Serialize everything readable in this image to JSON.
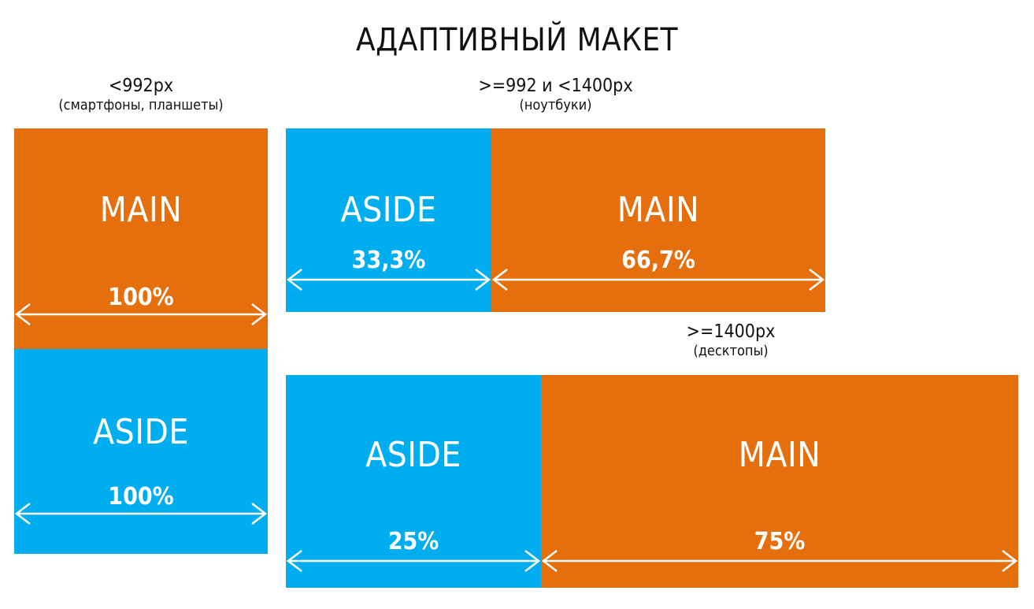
{
  "title": "АДАПТИВНЫЙ МАКЕТ",
  "colors": {
    "blue": "#00adef",
    "orange": "#e56f0c"
  },
  "breakpoints": [
    {
      "range": "<992px",
      "devices": "(смартфоны, планшеты)",
      "blocks": [
        {
          "label": "MAIN",
          "width": "100%",
          "color": "orange"
        },
        {
          "label": "ASIDE",
          "width": "100%",
          "color": "blue"
        }
      ]
    },
    {
      "range": ">=992 и <1400px",
      "devices": "(ноутбуки)",
      "blocks": [
        {
          "label": "ASIDE",
          "width": "33,3%",
          "color": "blue"
        },
        {
          "label": "MAIN",
          "width": "66,7%",
          "color": "orange"
        }
      ]
    },
    {
      "range": ">=1400px",
      "devices": "(десктопы)",
      "blocks": [
        {
          "label": "ASIDE",
          "width": "25%",
          "color": "blue"
        },
        {
          "label": "MAIN",
          "width": "75%",
          "color": "orange"
        }
      ]
    }
  ]
}
